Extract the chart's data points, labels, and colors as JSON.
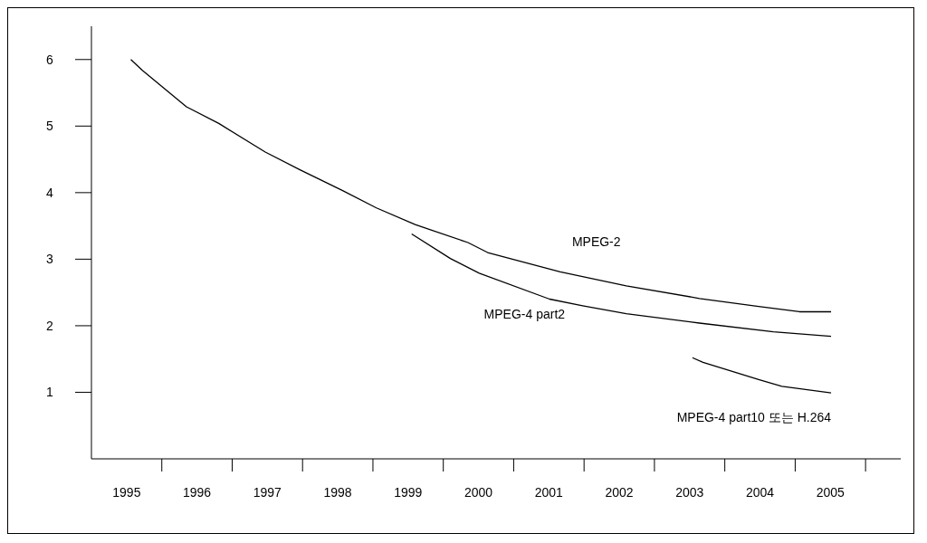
{
  "chart_data": {
    "type": "line",
    "xlim": [
      1994.5,
      2006
    ],
    "ylim": [
      0,
      6.5
    ],
    "yticks": [
      1,
      2,
      3,
      4,
      5,
      6
    ],
    "xticks": [
      {
        "value": 1995,
        "label": "1995"
      },
      {
        "value": 1995.5,
        "label": null
      },
      {
        "value": 1996,
        "label": "1996"
      },
      {
        "value": 1996.5,
        "label": null
      },
      {
        "value": 1997,
        "label": "1997"
      },
      {
        "value": 1997.5,
        "label": null
      },
      {
        "value": 1998,
        "label": "1998"
      },
      {
        "value": 1998.5,
        "label": null
      },
      {
        "value": 1999,
        "label": "1999"
      },
      {
        "value": 1999.5,
        "label": null
      },
      {
        "value": 2000,
        "label": "2000"
      },
      {
        "value": 2000.5,
        "label": null
      },
      {
        "value": 2001,
        "label": "2001"
      },
      {
        "value": 2001.5,
        "label": null
      },
      {
        "value": 2002,
        "label": "2002"
      },
      {
        "value": 2002.5,
        "label": null
      },
      {
        "value": 2003,
        "label": "2003"
      },
      {
        "value": 2003.5,
        "label": null
      },
      {
        "value": 2004,
        "label": "2004"
      },
      {
        "value": 2004.5,
        "label": null
      },
      {
        "value": 2005,
        "label": "2005"
      },
      {
        "value": 2005.5,
        "label": null
      }
    ],
    "grid": false,
    "legend": false,
    "marker": "none",
    "line_style": "solid",
    "series": [
      {
        "name": "MPEG-2",
        "color": "#000000",
        "x": [
          1995.06,
          1995.22,
          1995.85,
          1996.31,
          1996.97,
          1997.47,
          1998.07,
          1998.55,
          1999.1,
          1999.85,
          2000.13,
          2001.16,
          2002.1,
          2003.14,
          2003.98,
          2004.56,
          2005.01
        ],
        "values": [
          6.0,
          5.84,
          5.29,
          5.04,
          4.61,
          4.34,
          4.03,
          3.77,
          3.52,
          3.25,
          3.1,
          2.81,
          2.6,
          2.41,
          2.29,
          2.21,
          2.21
        ]
      },
      {
        "name": "MPEG-4 part2",
        "color": "#000000",
        "x": [
          1999.05,
          1999.6,
          2000.01,
          2001.01,
          2001.48,
          2002.1,
          2003.14,
          2004.19,
          2005.01
        ],
        "values": [
          3.38,
          3.01,
          2.79,
          2.4,
          2.3,
          2.18,
          2.04,
          1.91,
          1.84
        ]
      },
      {
        "name": "MPEG-4 part10 또는 H.264",
        "color": "#000000",
        "x": [
          2003.04,
          2003.19,
          2003.98,
          2004.31,
          2005.01
        ],
        "values": [
          1.52,
          1.45,
          1.19,
          1.09,
          0.99
        ]
      }
    ]
  }
}
